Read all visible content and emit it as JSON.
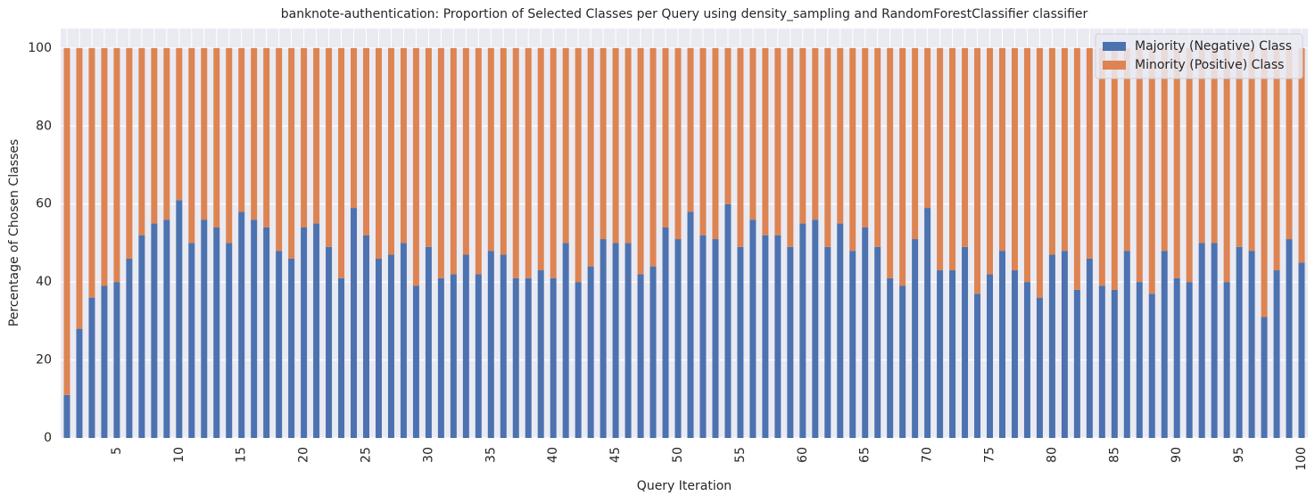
{
  "chart_data": {
    "type": "stacked_bar",
    "title": "banknote-authentication: Proportion of Selected Classes per Query using density_sampling and RandomForestClassifier classifier",
    "xlabel": "Query Iteration",
    "ylabel": "Percentage of Chosen Classes",
    "categories": [
      null,
      null,
      null,
      null,
      5,
      null,
      null,
      null,
      null,
      10,
      null,
      null,
      null,
      null,
      15,
      null,
      null,
      null,
      null,
      20,
      null,
      null,
      null,
      null,
      25,
      null,
      null,
      null,
      null,
      30,
      null,
      null,
      null,
      null,
      35,
      null,
      null,
      null,
      null,
      40,
      null,
      null,
      null,
      null,
      45,
      null,
      null,
      null,
      null,
      50,
      null,
      null,
      null,
      null,
      55,
      null,
      null,
      null,
      null,
      60,
      null,
      null,
      null,
      null,
      65,
      null,
      null,
      null,
      null,
      70,
      null,
      null,
      null,
      null,
      75,
      null,
      null,
      null,
      null,
      80,
      null,
      null,
      null,
      null,
      85,
      null,
      null,
      null,
      null,
      90,
      null,
      null,
      null,
      null,
      95,
      null,
      null,
      null,
      null,
      100
    ],
    "series": [
      {
        "name": "Majority (Negative) Class",
        "color": "#4c72b0",
        "values": [
          11,
          28,
          36,
          39,
          40,
          46,
          52,
          55,
          56,
          61,
          50,
          56,
          54,
          50,
          58,
          56,
          54,
          48,
          46,
          54,
          55,
          49,
          41,
          59,
          52,
          46,
          47,
          50,
          39,
          49,
          41,
          42,
          47,
          42,
          48,
          47,
          41,
          41,
          43,
          41,
          50,
          40,
          44,
          51,
          50,
          50,
          42,
          44,
          54,
          51,
          58,
          52,
          51,
          60,
          49,
          56,
          52,
          52,
          49,
          55,
          56,
          49,
          55,
          48,
          54,
          49,
          41,
          39,
          51,
          59,
          43,
          43,
          49,
          37,
          42,
          48,
          43,
          40,
          36,
          47,
          48,
          38,
          46,
          39,
          38,
          48,
          40,
          37,
          48,
          41,
          40,
          50,
          50,
          40,
          49,
          48,
          31,
          43,
          51,
          45
        ]
      },
      {
        "name": "Minority (Positive) Class",
        "color": "#dd8452",
        "values": [
          89,
          72,
          64,
          61,
          60,
          54,
          48,
          45,
          44,
          39,
          50,
          44,
          46,
          50,
          42,
          44,
          46,
          52,
          54,
          46,
          45,
          51,
          59,
          41,
          48,
          54,
          53,
          50,
          61,
          51,
          59,
          58,
          53,
          58,
          52,
          53,
          59,
          59,
          57,
          59,
          50,
          60,
          56,
          49,
          50,
          50,
          58,
          56,
          46,
          49,
          42,
          48,
          49,
          40,
          51,
          44,
          48,
          48,
          51,
          45,
          44,
          51,
          45,
          52,
          46,
          51,
          59,
          61,
          49,
          41,
          57,
          57,
          51,
          63,
          58,
          52,
          57,
          60,
          64,
          53,
          52,
          62,
          54,
          61,
          62,
          52,
          60,
          63,
          52,
          59,
          60,
          50,
          50,
          60,
          51,
          52,
          69,
          57,
          49,
          55
        ]
      }
    ],
    "ylim": [
      0,
      105
    ],
    "yticks": [
      0,
      20,
      40,
      60,
      80,
      100
    ],
    "grid": true,
    "legend": "upper right"
  }
}
